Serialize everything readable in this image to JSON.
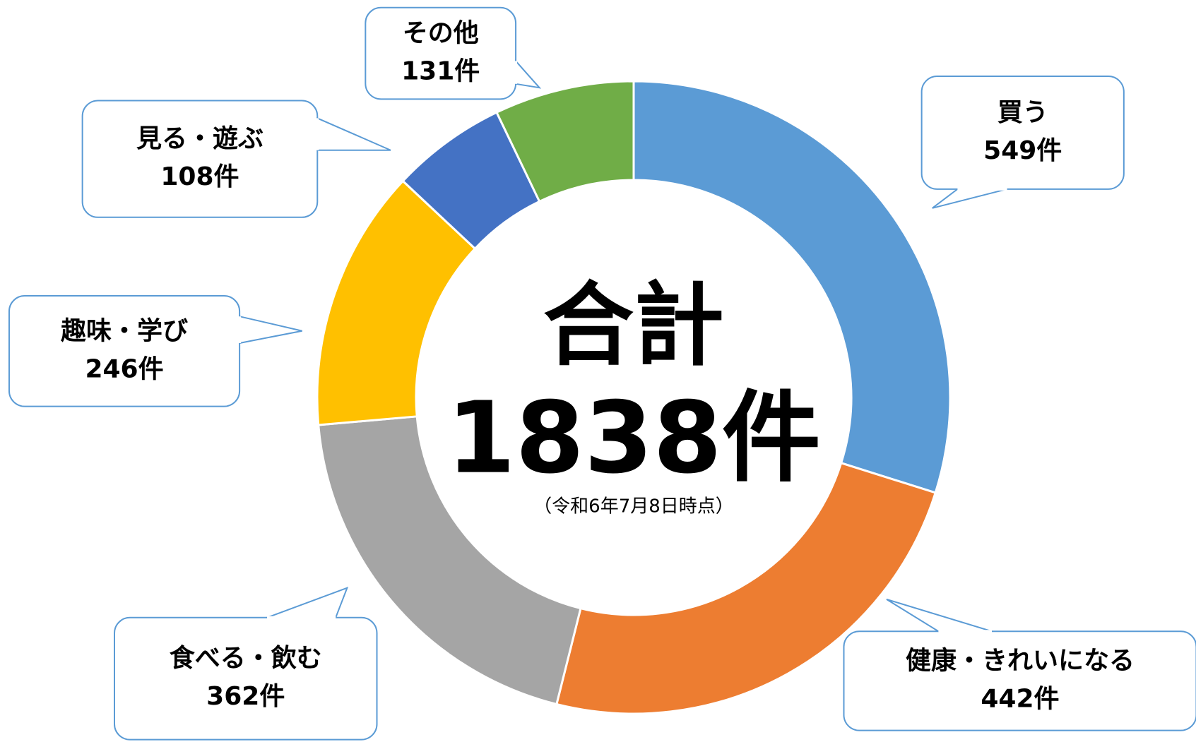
{
  "chart_data": {
    "type": "donut",
    "categories": [
      "買う",
      "健康・きれいになる",
      "食べる・飲む",
      "趣味・学び",
      "見る・遊ぶ",
      "その他"
    ],
    "values": [
      549,
      442,
      362,
      246,
      108,
      131
    ],
    "value_labels": [
      "549件",
      "442件",
      "362件",
      "246件",
      "108件",
      "131件"
    ],
    "colors": [
      "#5b9bd5",
      "#ed7d31",
      "#a5a5a5",
      "#ffc000",
      "#4472c4",
      "#70ad47"
    ],
    "center_title": "合計",
    "center_total": "1838件",
    "center_note": "（令和6年7月8日時点）"
  }
}
